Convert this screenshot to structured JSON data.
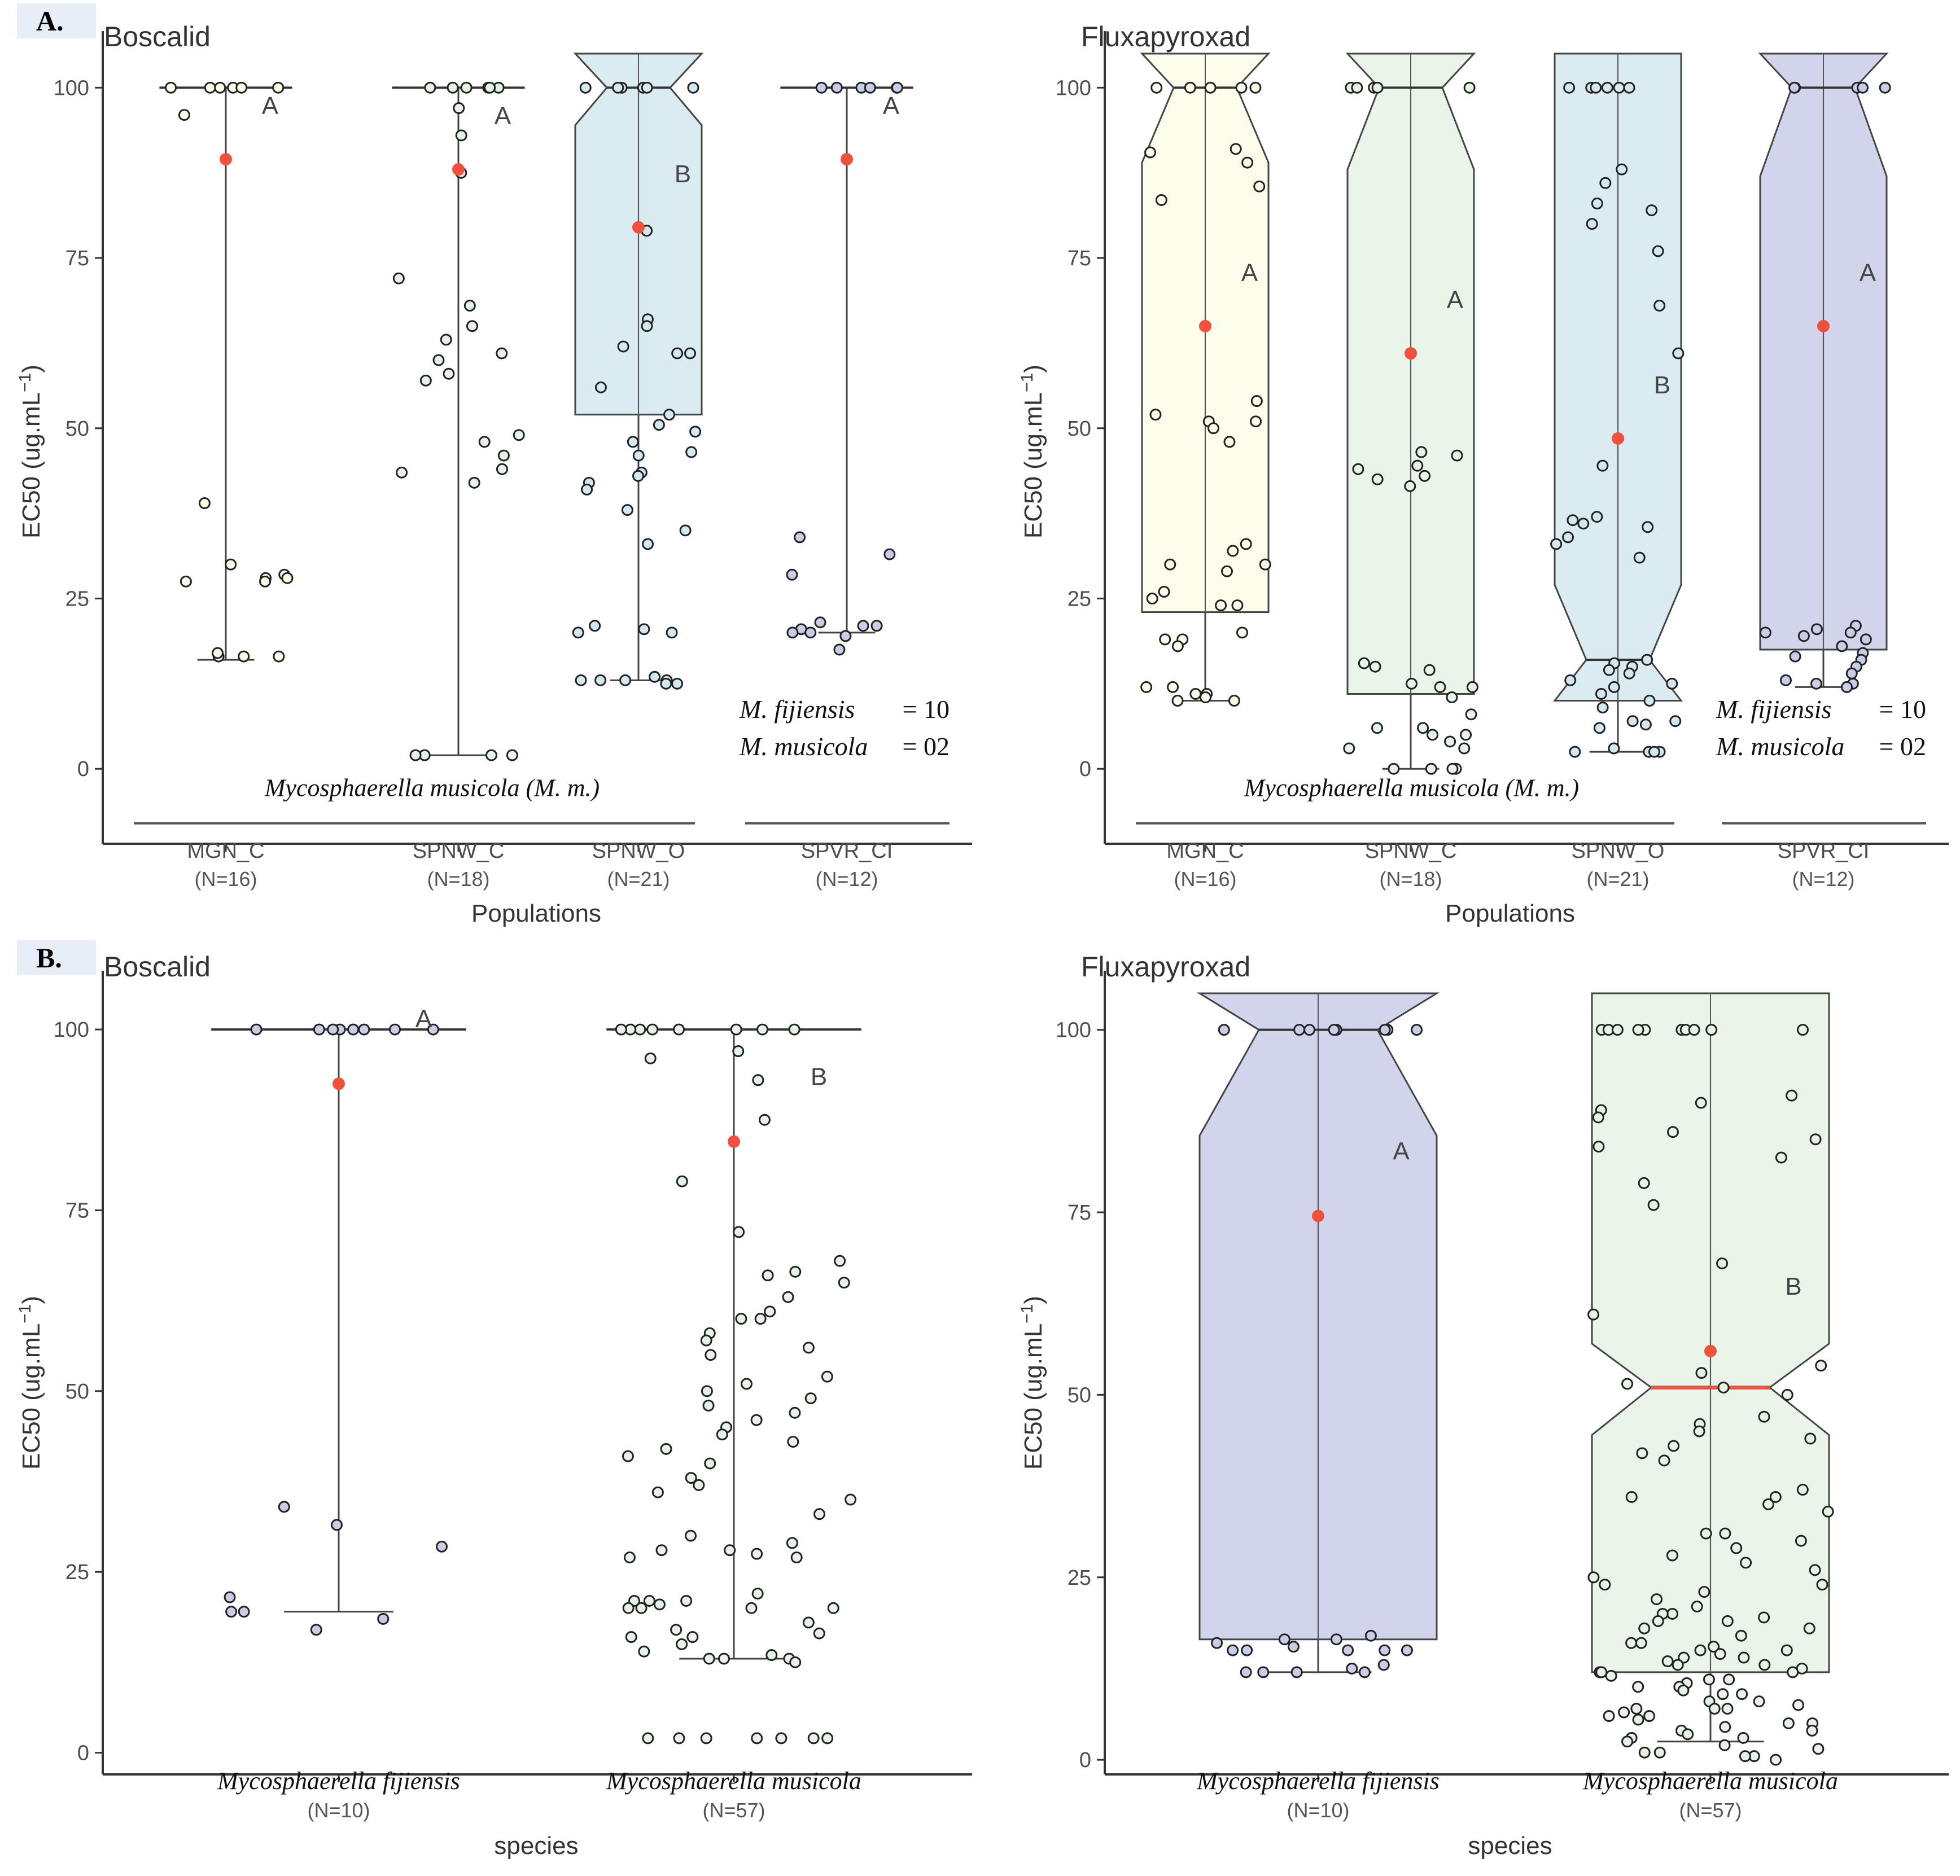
{
  "figure": {
    "panel_labels": [
      "A.",
      "B."
    ],
    "colors": {
      "mgn_c": "#fdfde9",
      "spnw_c": "#e6f3e6",
      "spnw_o": "#d3e9ef",
      "spvr_ci": "#c9cde6",
      "fijiensis": "#c9cde6",
      "musicola": "#e6f3e6",
      "mean_point": "#f0503c",
      "axis": "#333333"
    }
  },
  "chart_data": [
    {
      "panel": "A.",
      "type": "box",
      "title": "Boscalid",
      "xlabel": "Populations",
      "ylabel": "EC50 (ug.mL",
      "ylabel_sup": "−1",
      "ylabel_close": ")",
      "ylim": [
        -11,
        105
      ],
      "yticks": [
        0,
        25,
        50,
        75,
        100
      ],
      "group_label": "Mycosphaerella musicola (M. m.)",
      "legend_lines": [
        {
          "name": "M. fijiensis",
          "value": "= 10"
        },
        {
          "name": "M. musicola",
          "value": "= 02"
        }
      ],
      "categories": [
        {
          "name": "MGN_C",
          "n": "(N=16)",
          "color_key": "mgn_c",
          "q1": 100,
          "median": 100,
          "q3": 100,
          "whisker_low": 16,
          "whisker_high": 100,
          "notch_low": 100,
          "notch_high": 100,
          "mean": 89.5,
          "letter": "A",
          "points": [
            100,
            100,
            100,
            100,
            100,
            100,
            96,
            39,
            30,
            28.5,
            28,
            27.5,
            28,
            27.5,
            16.5,
            16.5,
            17,
            16.5
          ]
        },
        {
          "name": "SPNW_C",
          "n": "(N=18)",
          "color_key": "spnw_c",
          "q1": 100,
          "median": 100,
          "q3": 100,
          "whisker_low": 2,
          "whisker_high": 100,
          "notch_low": 100,
          "notch_high": 100,
          "mean": 88,
          "letter": "A",
          "points": [
            100,
            100,
            100,
            100,
            100,
            100,
            97,
            93,
            87.5,
            72,
            68,
            65,
            63,
            61,
            60,
            58,
            57,
            49,
            48,
            46,
            44,
            43.5,
            42,
            2,
            2,
            2,
            2
          ]
        },
        {
          "name": "SPNW_O",
          "n": "(N=21)",
          "color_key": "spnw_o",
          "q1": 52,
          "median": 100,
          "q3": 100,
          "whisker_low": 13,
          "whisker_high": 100,
          "notch_low": 94.5,
          "notch_high": 105,
          "mean": 79.5,
          "letter": "B",
          "points": [
            100,
            100,
            100,
            100,
            100,
            100,
            79,
            66,
            65,
            62,
            61,
            61,
            56,
            52,
            50.5,
            49.5,
            48,
            46.5,
            46,
            43.5,
            43,
            42,
            41,
            38,
            35,
            33,
            21,
            20.5,
            20,
            20,
            13.5,
            13,
            13,
            13,
            13,
            12.5,
            12.5
          ]
        },
        {
          "name": "SPVR_CI",
          "n": "(N=12)",
          "color_key": "spvr_ci",
          "q1": 100,
          "median": 100,
          "q3": 100,
          "whisker_low": 20,
          "whisker_high": 100,
          "notch_low": 100,
          "notch_high": 100,
          "mean": 89.5,
          "letter": "A",
          "points": [
            100,
            100,
            100,
            100,
            100,
            100,
            34,
            31.5,
            28.5,
            21.5,
            21,
            21,
            20.5,
            20,
            20,
            19.5,
            17.5
          ]
        }
      ]
    },
    {
      "panel": "A.",
      "type": "box",
      "title": "Fluxapyroxad",
      "xlabel": "Populations",
      "ylabel": "EC50 (ug.mL",
      "ylabel_sup": "−1",
      "ylabel_close": ")",
      "ylim": [
        -11,
        105
      ],
      "yticks": [
        0,
        25,
        50,
        75,
        100
      ],
      "group_label": "Mycosphaerella musicola (M. m.)",
      "legend_lines": [
        {
          "name": "M. fijiensis",
          "value": "= 10"
        },
        {
          "name": "M. musicola",
          "value": "= 02"
        }
      ],
      "categories": [
        {
          "name": "MGN_C",
          "n": "(N=16)",
          "color_key": "mgn_c",
          "q1": 23,
          "median": 100,
          "q3": 100,
          "whisker_low": 10,
          "whisker_high": 100,
          "notch_low": 89,
          "notch_high": 105,
          "mean": 65,
          "letter": "A",
          "points": [
            100,
            100,
            100,
            100,
            100,
            91,
            90.5,
            89,
            85.5,
            83.5,
            54,
            52,
            51,
            51,
            50,
            48,
            33,
            32,
            30,
            30,
            29,
            26,
            25,
            24,
            24,
            20,
            19,
            19,
            18,
            12,
            12,
            11,
            11,
            10.5,
            10,
            10
          ]
        },
        {
          "name": "SPNW_C",
          "n": "(N=18)",
          "color_key": "spnw_c",
          "q1": 11,
          "median": 100,
          "q3": 100,
          "whisker_low": 0,
          "whisker_high": 100,
          "notch_low": 88,
          "notch_high": 105,
          "mean": 61,
          "letter": "A",
          "points": [
            100,
            100,
            100,
            100,
            100,
            46.5,
            46,
            44.5,
            44,
            43,
            42.5,
            41.5,
            15.5,
            15,
            14.5,
            12.5,
            12,
            12,
            10.5,
            8,
            6,
            6,
            5,
            5,
            4,
            3,
            3,
            0,
            0,
            0,
            0
          ]
        },
        {
          "name": "SPNW_O",
          "n": "(N=21)",
          "color_key": "spnw_o",
          "q1": 10,
          "median": 16,
          "q3": 100,
          "whisker_low": 2.5,
          "whisker_high": 100,
          "notch_low": 5,
          "notch_high": 27,
          "mean": 48.5,
          "letter": "B",
          "points": [
            100,
            100,
            100,
            100,
            100,
            100,
            88,
            86,
            83,
            82,
            80,
            76,
            68,
            61,
            44.5,
            37,
            36.5,
            36,
            35.5,
            34,
            33,
            31,
            16,
            15.5,
            15,
            14.5,
            14,
            13,
            12.5,
            12,
            11,
            10,
            9,
            7,
            7,
            6.5,
            6,
            3,
            2.5,
            2.5,
            2.5,
            2.5
          ]
        },
        {
          "name": "SPVR_CI",
          "n": "(N=12)",
          "color_key": "spvr_ci",
          "q1": 17.5,
          "median": 100,
          "q3": 100,
          "whisker_low": 12,
          "whisker_high": 100,
          "notch_low": 87,
          "notch_high": 105,
          "mean": 65,
          "letter": "A",
          "points": [
            100,
            100,
            100,
            100,
            100,
            21,
            20.5,
            20,
            20,
            19.5,
            19,
            18,
            17,
            16.5,
            16,
            15,
            14,
            13,
            12.5,
            12.5,
            12
          ]
        }
      ]
    },
    {
      "panel": "B.",
      "type": "box",
      "title": "Boscalid",
      "xlabel": "species",
      "ylabel": "EC50 (ug.mL",
      "ylabel_sup": "−1",
      "ylabel_close": ")",
      "ylim": [
        -3,
        105
      ],
      "yticks": [
        0,
        25,
        50,
        75,
        100
      ],
      "categories": [
        {
          "name": "Mycosphaerella fijiensis",
          "italic": true,
          "n": "(N=10)",
          "color_key": "fijiensis",
          "q1": 100,
          "median": 100,
          "q3": 100,
          "whisker_low": 19.5,
          "whisker_high": 100,
          "notch_low": 100,
          "notch_high": 100,
          "mean": 92.5,
          "letter": "A",
          "points": [
            100,
            100,
            100,
            100,
            100,
            100,
            100,
            100,
            34,
            31.5,
            28.5,
            21.5,
            19.5,
            19.5,
            18.5,
            17
          ]
        },
        {
          "name": "Mycosphaerella musicola",
          "italic": true,
          "n": "(N=57)",
          "color_key": "musicola",
          "q1": 100,
          "median": 100,
          "q3": 100,
          "whisker_low": 13,
          "whisker_high": 100,
          "notch_low": 100,
          "notch_high": 100,
          "mean": 84.5,
          "letter": "B",
          "points": [
            100,
            100,
            100,
            100,
            100,
            100,
            100,
            100,
            97,
            96,
            93,
            87.5,
            79,
            72,
            68,
            66.5,
            66,
            65,
            63,
            61,
            60,
            60,
            58,
            57,
            56,
            55,
            52,
            51,
            50,
            49,
            48,
            47,
            46,
            45,
            44,
            43,
            42,
            41,
            40,
            38,
            37,
            36,
            35,
            33,
            30,
            29,
            28,
            28,
            27.5,
            27,
            27,
            22,
            21,
            21,
            21,
            20.5,
            20,
            20,
            20,
            20,
            18,
            17,
            16.5,
            16,
            16,
            15,
            14,
            13.5,
            13,
            13,
            13,
            12.5,
            2,
            2,
            2,
            2,
            2,
            2,
            2
          ]
        }
      ]
    },
    {
      "panel": "B.",
      "type": "box",
      "title": "Fluxapyroxad",
      "xlabel": "species",
      "ylabel": "EC50 (ug.mL",
      "ylabel_sup": "−1",
      "ylabel_close": ")",
      "ylim": [
        -2,
        105
      ],
      "yticks": [
        0,
        25,
        50,
        75,
        100
      ],
      "categories": [
        {
          "name": "Mycosphaerella fijiensis",
          "italic": true,
          "n": "(N=10)",
          "color_key": "fijiensis",
          "q1": 16.5,
          "median": 100,
          "q3": 100,
          "whisker_low": 12,
          "whisker_high": 100,
          "notch_low": 85.5,
          "notch_high": 105,
          "mean": 74.5,
          "letter": "A",
          "points": [
            100,
            100,
            100,
            100,
            100,
            100,
            100,
            100,
            17,
            16.5,
            16.5,
            16,
            15.5,
            15,
            15,
            15,
            15,
            15,
            13,
            12.5,
            12,
            12,
            12,
            12
          ]
        },
        {
          "name": "Mycosphaerella musicola",
          "italic": true,
          "n": "(N=57)",
          "color_key": "musicola",
          "q1": 12,
          "median": 51,
          "q3": 100,
          "whisker_low": 2.5,
          "whisker_high": 100,
          "notch_low": 44.5,
          "notch_high": 57,
          "mean": 56,
          "letter": "B",
          "points": [
            100,
            100,
            100,
            100,
            100,
            100,
            100,
            100,
            100,
            100,
            91,
            90,
            89,
            88,
            86,
            85,
            84,
            82.5,
            79,
            76,
            68,
            61,
            54,
            53,
            51.5,
            51,
            50,
            47,
            46,
            45,
            44,
            43,
            42,
            41,
            37,
            36,
            36,
            35,
            34,
            31,
            31,
            30,
            29,
            28,
            27,
            26,
            25,
            24,
            24,
            23,
            22,
            21,
            20,
            20,
            19.5,
            19,
            19,
            18,
            18,
            17,
            16,
            16,
            15.5,
            15,
            15,
            14.5,
            14,
            14,
            13.5,
            13,
            13,
            12.5,
            12,
            12,
            12,
            11.5,
            11,
            11,
            10.5,
            10,
            10,
            9.5,
            9,
            9,
            8,
            8,
            7.5,
            7,
            7,
            7,
            6.5,
            6,
            6,
            5.5,
            5,
            5,
            4.5,
            4,
            4,
            3.5,
            3,
            3,
            2.5,
            2,
            1.5,
            1,
            1,
            0.5,
            0.5,
            0
          ]
        }
      ]
    }
  ]
}
